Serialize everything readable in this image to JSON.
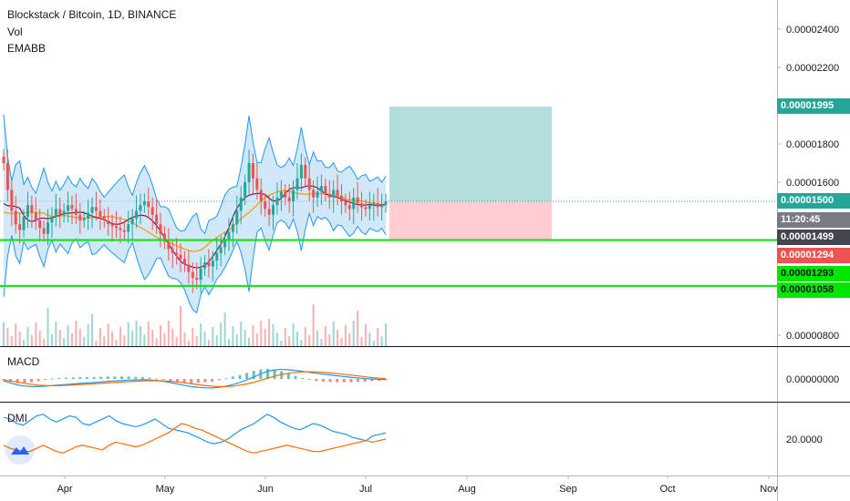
{
  "header": {
    "symbol": "Blockstack / Bitcoin, 1D, BINANCE",
    "vol_label": "Vol",
    "ema_label": "EMABB"
  },
  "panes": {
    "macd_label": "MACD",
    "dmi_label": "DMI"
  },
  "colors": {
    "candle_up": "#26a69a",
    "candle_down": "#ef5350",
    "bb_fill": "#b3d9f5",
    "bb_line": "#2196f3",
    "ema_fast": "#880e4f",
    "ema_slow": "#ff9800",
    "profit_zone": "#b2dfdb",
    "loss_zone": "#ffcdd2",
    "support_line": "#00e600",
    "macd_line": "#2196f3",
    "signal_line": "#ff6d00",
    "dmi_plus": "#2196f3",
    "dmi_minus": "#ff6d00"
  },
  "price_axis": {
    "ticks": [
      "0.00002400",
      "0.00002200",
      "0.00001800",
      "0.00001600",
      "0.00000800"
    ],
    "labels": {
      "target": "0.00001995",
      "entry": "0.00001500",
      "countdown": "11:20:45",
      "last": "0.00001499",
      "stop": "0.00001294",
      "support1": "0.00001293",
      "support2": "0.00001058"
    },
    "label_colors": {
      "target": "#26a69a",
      "entry": "#26a69a",
      "countdown": "#787b86",
      "last": "#434651",
      "stop": "#ef5350",
      "support1": "#00e600",
      "support2": "#00e600"
    }
  },
  "macd_axis": {
    "ticks": [
      "0.00000000"
    ]
  },
  "dmi_axis": {
    "ticks": [
      "20.0000"
    ]
  },
  "time_axis": {
    "ticks": [
      "Apr",
      "May",
      "Jun",
      "Jul",
      "Aug",
      "Sep",
      "Oct",
      "Nov"
    ]
  },
  "chart_data": {
    "type": "candlestick",
    "title": "Blockstack / Bitcoin, 1D, BINANCE",
    "price_range": [
      8e-06,
      2.5e-05
    ],
    "candles_close": [
      1.7e-05,
      1.56e-05,
      1.45e-05,
      1.38e-05,
      1.35e-05,
      1.42e-05,
      1.48e-05,
      1.44e-05,
      1.4e-05,
      1.36e-05,
      1.33e-05,
      1.39e-05,
      1.42e-05,
      1.46e-05,
      1.43e-05,
      1.45e-05,
      1.48e-05,
      1.46e-05,
      1.43e-05,
      1.4e-05,
      1.41e-05,
      1.44e-05,
      1.47e-05,
      1.45e-05,
      1.42e-05,
      1.4e-05,
      1.38e-05,
      1.37e-05,
      1.36e-05,
      1.35e-05,
      1.34e-05,
      1.38e-05,
      1.41e-05,
      1.45e-05,
      1.48e-05,
      1.5e-05,
      1.47e-05,
      1.43e-05,
      1.38e-05,
      1.33e-05,
      1.29e-05,
      1.25e-05,
      1.23e-05,
      1.22e-05,
      1.2e-05,
      1.17e-05,
      1.13e-05,
      1.1e-05,
      1.09e-05,
      1.15e-05,
      1.18e-05,
      1.16e-05,
      1.19e-05,
      1.23e-05,
      1.26e-05,
      1.3e-05,
      1.34e-05,
      1.38e-05,
      1.45e-05,
      1.52e-05,
      1.6e-05,
      1.7e-05,
      1.62e-05,
      1.56e-05,
      1.5e-05,
      1.46e-05,
      1.43e-05,
      1.48e-05,
      1.52e-05,
      1.55e-05,
      1.52e-05,
      1.5e-05,
      1.56e-05,
      1.62e-05,
      1.69e-05,
      1.62e-05,
      1.56e-05,
      1.52e-05,
      1.55e-05,
      1.58e-05,
      1.54e-05,
      1.52e-05,
      1.56e-05,
      1.53e-05,
      1.5e-05,
      1.48e-05,
      1.46e-05,
      1.52e-05,
      1.49e-05,
      1.47e-05,
      1.46e-05,
      1.48e-05,
      1.49e-05,
      1.47e-05,
      1.48e-05,
      1.499e-05
    ],
    "entry": 1.5e-05,
    "target": 1.995e-05,
    "stop": 1.294e-05,
    "support_levels": [
      1.293e-05,
      1.058e-05
    ],
    "macd": [
      -0.1,
      -0.2,
      -0.3,
      -0.35,
      -0.38,
      -0.38,
      -0.36,
      -0.33,
      -0.3,
      -0.28,
      -0.25,
      -0.22,
      -0.2,
      -0.18,
      -0.15,
      -0.12,
      -0.1,
      -0.08,
      -0.06,
      -0.05,
      -0.04,
      -0.05,
      -0.08,
      -0.12,
      -0.18,
      -0.25,
      -0.32,
      -0.38,
      -0.42,
      -0.44,
      -0.45,
      -0.42,
      -0.36,
      -0.28,
      -0.18,
      -0.05,
      0.1,
      0.25,
      0.38,
      0.45,
      0.48,
      0.46,
      0.42,
      0.38,
      0.33,
      0.28,
      0.24,
      0.2,
      0.16,
      0.12,
      0.08,
      0.05,
      0.02,
      0.0,
      -0.02,
      -0.03
    ],
    "macd_signal": [
      -0.05,
      -0.1,
      -0.16,
      -0.22,
      -0.27,
      -0.31,
      -0.33,
      -0.34,
      -0.33,
      -0.32,
      -0.3,
      -0.28,
      -0.26,
      -0.24,
      -0.22,
      -0.2,
      -0.18,
      -0.16,
      -0.14,
      -0.12,
      -0.1,
      -0.09,
      -0.09,
      -0.1,
      -0.12,
      -0.15,
      -0.19,
      -0.24,
      -0.29,
      -0.33,
      -0.36,
      -0.38,
      -0.38,
      -0.36,
      -0.31,
      -0.25,
      -0.17,
      -0.07,
      0.04,
      0.14,
      0.22,
      0.28,
      0.32,
      0.35,
      0.36,
      0.35,
      0.33,
      0.3,
      0.27,
      0.23,
      0.19,
      0.15,
      0.11,
      0.07,
      0.04,
      0.01
    ],
    "dmi_plus": [
      34,
      33,
      30,
      29,
      32,
      35,
      36,
      33,
      31,
      33,
      35,
      34,
      30,
      29,
      31,
      33,
      35,
      32,
      30,
      29,
      28,
      29,
      31,
      33,
      30,
      27,
      26,
      25,
      24,
      22,
      20,
      18,
      17,
      18,
      20,
      23,
      26,
      28,
      30,
      33,
      36,
      34,
      31,
      29,
      27,
      26,
      28,
      30,
      29,
      27,
      25,
      24,
      23,
      21,
      20,
      19,
      22,
      23,
      24
    ],
    "dmi_minus": [
      16,
      14,
      13,
      12,
      12,
      14,
      16,
      14,
      12,
      11,
      13,
      15,
      16,
      15,
      14,
      13,
      16,
      18,
      17,
      16,
      15,
      16,
      18,
      20,
      22,
      24,
      27,
      30,
      29,
      27,
      26,
      24,
      22,
      20,
      18,
      16,
      14,
      12,
      11,
      12,
      13,
      14,
      15,
      16,
      15,
      14,
      13,
      12,
      12,
      13,
      14,
      15,
      16,
      17,
      18,
      19,
      18,
      19,
      20
    ]
  }
}
